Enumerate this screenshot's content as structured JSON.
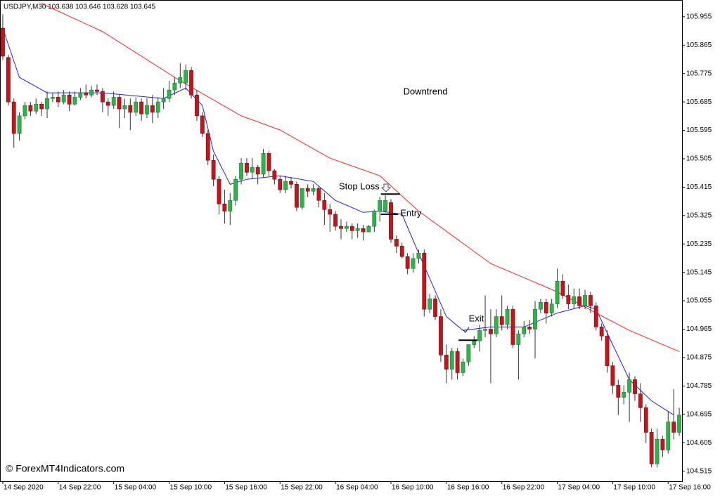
{
  "chart_data": {
    "type": "candlestick",
    "title": "USDJPY,M30  103.638 103.646 103.628 103.645",
    "watermark": "© ForexMT4Indicators.com",
    "up_color": "#2eb34a",
    "down_color": "#c0161c",
    "ylim": [
      104.483,
      105.997
    ],
    "yticks": [
      105.955,
      105.865,
      105.775,
      105.685,
      105.595,
      105.505,
      105.415,
      105.325,
      105.235,
      105.145,
      105.055,
      104.965,
      104.875,
      104.785,
      104.695,
      104.605,
      104.515
    ],
    "xlim": [
      -0.5,
      122.5
    ],
    "xticks": [
      {
        "value": 0,
        "label": "14 Sep 2020"
      },
      {
        "value": 10,
        "label": "14 Sep 22:00"
      },
      {
        "value": 20,
        "label": "15 Sep 04:00"
      },
      {
        "value": 30,
        "label": "15 Sep 10:00"
      },
      {
        "value": 40,
        "label": "15 Sep 16:00"
      },
      {
        "value": 50,
        "label": "15 Sep 22:00"
      },
      {
        "value": 60,
        "label": "16 Sep 04:00"
      },
      {
        "value": 70,
        "label": "16 Sep 10:00"
      },
      {
        "value": 80,
        "label": "16 Sep 16:00"
      },
      {
        "value": 90,
        "label": "16 Sep 22:00"
      },
      {
        "value": 100,
        "label": "17 Sep 04:00"
      },
      {
        "value": 110,
        "label": "17 Sep 10:00"
      },
      {
        "value": 120,
        "label": "17 Sep 16:00"
      }
    ],
    "candles": [
      [
        105.919,
        105.963,
        105.819,
        105.83
      ],
      [
        105.826,
        105.834,
        105.674,
        105.685
      ],
      [
        105.685,
        105.696,
        105.54,
        105.585
      ],
      [
        105.585,
        105.652,
        105.562,
        105.641
      ],
      [
        105.641,
        105.685,
        105.63,
        105.674
      ],
      [
        105.674,
        105.685,
        105.641,
        105.656
      ],
      [
        105.656,
        105.696,
        105.647,
        105.678
      ],
      [
        105.678,
        105.685,
        105.641,
        105.663
      ],
      [
        105.663,
        105.718,
        105.634,
        105.696
      ],
      [
        105.696,
        105.714,
        105.685,
        105.7
      ],
      [
        105.7,
        105.718,
        105.669,
        105.685
      ],
      [
        105.685,
        105.723,
        105.678,
        105.707
      ],
      [
        105.707,
        105.718,
        105.656,
        105.678
      ],
      [
        105.678,
        105.718,
        105.674,
        105.7
      ],
      [
        105.7,
        105.729,
        105.692,
        105.714
      ],
      [
        105.714,
        105.74,
        105.696,
        105.707
      ],
      [
        105.707,
        105.736,
        105.7,
        105.723
      ],
      [
        105.723,
        105.74,
        105.707,
        105.718
      ],
      [
        105.718,
        105.729,
        105.652,
        105.685
      ],
      [
        105.685,
        105.696,
        105.641,
        105.674
      ],
      [
        105.674,
        105.718,
        105.663,
        105.7
      ],
      [
        105.7,
        105.707,
        105.603,
        105.663
      ],
      [
        105.663,
        105.696,
        105.634,
        105.674
      ],
      [
        105.674,
        105.696,
        105.596,
        105.652
      ],
      [
        105.652,
        105.7,
        105.641,
        105.685
      ],
      [
        105.685,
        105.696,
        105.625,
        105.647
      ],
      [
        105.647,
        105.696,
        105.634,
        105.674
      ],
      [
        105.674,
        105.707,
        105.618,
        105.652
      ],
      [
        105.652,
        105.7,
        105.634,
        105.685
      ],
      [
        105.685,
        105.729,
        105.663,
        105.696
      ],
      [
        105.696,
        105.752,
        105.685,
        105.723
      ],
      [
        105.723,
        105.763,
        105.707,
        105.745
      ],
      [
        105.745,
        105.808,
        105.729,
        105.763
      ],
      [
        105.745,
        105.803,
        105.723,
        105.785
      ],
      [
        105.785,
        105.796,
        105.696,
        105.707
      ],
      [
        105.707,
        105.723,
        105.625,
        105.641
      ],
      [
        105.641,
        105.652,
        105.574,
        105.585
      ],
      [
        105.585,
        105.596,
        105.485,
        105.5
      ],
      [
        105.5,
        105.518,
        105.418,
        105.44
      ],
      [
        105.44,
        105.451,
        105.329,
        105.362
      ],
      [
        105.362,
        105.407,
        105.3,
        105.339
      ],
      [
        105.339,
        105.396,
        105.295,
        105.373
      ],
      [
        105.373,
        105.451,
        105.357,
        105.44
      ],
      [
        105.44,
        105.507,
        105.424,
        105.491
      ],
      [
        105.491,
        105.507,
        105.451,
        105.462
      ],
      [
        105.462,
        105.507,
        105.44,
        105.478
      ],
      [
        105.478,
        105.485,
        105.424,
        105.456
      ],
      [
        105.456,
        105.536,
        105.447,
        105.522
      ],
      [
        105.522,
        105.529,
        105.451,
        105.467
      ],
      [
        105.467,
        105.473,
        105.424,
        105.44
      ],
      [
        105.44,
        105.451,
        105.396,
        105.407
      ],
      [
        105.407,
        105.451,
        105.396,
        105.433
      ],
      [
        105.433,
        105.447,
        105.411,
        105.424
      ],
      [
        105.424,
        105.433,
        105.339,
        105.351
      ],
      [
        105.351,
        105.411,
        105.344,
        105.411
      ],
      [
        105.411,
        105.424,
        105.384,
        105.402
      ],
      [
        105.402,
        105.424,
        105.389,
        105.411
      ],
      [
        105.411,
        105.418,
        105.351,
        105.373
      ],
      [
        105.373,
        105.396,
        105.295,
        105.344
      ],
      [
        105.344,
        105.362,
        105.273,
        105.329
      ],
      [
        105.329,
        105.339,
        105.277,
        105.291
      ],
      [
        105.291,
        105.313,
        105.25,
        105.284
      ],
      [
        105.284,
        105.306,
        105.273,
        105.291
      ],
      [
        105.291,
        105.3,
        105.25,
        105.277
      ],
      [
        105.277,
        105.3,
        105.255,
        105.284
      ],
      [
        105.284,
        105.295,
        105.246,
        105.273
      ],
      [
        105.273,
        105.295,
        105.273,
        105.291
      ],
      [
        105.291,
        105.344,
        105.273,
        105.339
      ],
      [
        105.339,
        105.384,
        105.306,
        105.373
      ],
      [
        105.339,
        105.389,
        105.335,
        105.373
      ],
      [
        105.366,
        105.377,
        105.239,
        105.25
      ],
      [
        105.25,
        105.262,
        105.206,
        105.228
      ],
      [
        105.228,
        105.239,
        105.189,
        105.195
      ],
      [
        105.195,
        105.206,
        105.139,
        105.157
      ],
      [
        105.157,
        105.206,
        105.144,
        105.189
      ],
      [
        105.189,
        105.217,
        105.173,
        105.206
      ],
      [
        105.206,
        105.217,
        105.005,
        105.028
      ],
      [
        105.028,
        105.077,
        105.016,
        105.061
      ],
      [
        105.061,
        105.072,
        104.994,
        105.005
      ],
      [
        105.005,
        105.028,
        104.861,
        104.883
      ],
      [
        104.883,
        104.916,
        104.794,
        104.838
      ],
      [
        104.838,
        104.905,
        104.805,
        104.894
      ],
      [
        104.894,
        104.905,
        104.805,
        104.827
      ],
      [
        104.827,
        104.872,
        104.816,
        104.861
      ],
      [
        104.861,
        104.916,
        104.849,
        104.916
      ],
      [
        104.916,
        104.943,
        104.905,
        104.928
      ],
      [
        104.928,
        104.979,
        104.894,
        104.961
      ],
      [
        104.961,
        105.072,
        104.939,
        104.965
      ],
      [
        104.965,
        105.028,
        104.794,
        104.95
      ],
      [
        104.95,
        105.028,
        104.939,
        105.005
      ],
      [
        105.005,
        105.072,
        104.961,
        104.979
      ],
      [
        104.979,
        105.039,
        104.965,
        105.028
      ],
      [
        105.028,
        105.039,
        104.905,
        104.916
      ],
      [
        104.916,
        104.961,
        104.805,
        104.95
      ],
      [
        104.95,
        104.99,
        104.939,
        104.972
      ],
      [
        104.972,
        104.994,
        104.95,
        104.965
      ],
      [
        104.965,
        105.054,
        104.872,
        105.028
      ],
      [
        105.028,
        105.061,
        105.016,
        105.05
      ],
      [
        105.05,
        105.061,
        104.983,
        105.016
      ],
      [
        105.016,
        105.061,
        105.005,
        105.045
      ],
      [
        105.045,
        105.157,
        105.032,
        105.117
      ],
      [
        105.117,
        105.139,
        105.061,
        105.072
      ],
      [
        105.072,
        105.106,
        105.028,
        105.045
      ],
      [
        105.045,
        105.094,
        105.028,
        105.068
      ],
      [
        105.068,
        105.094,
        105.028,
        105.039
      ],
      [
        105.039,
        105.09,
        105.028,
        105.072
      ],
      [
        105.072,
        105.083,
        105.016,
        105.039
      ],
      [
        105.039,
        105.05,
        104.961,
        104.972
      ],
      [
        104.972,
        104.983,
        104.928,
        104.943
      ],
      [
        104.943,
        104.961,
        104.827,
        104.849
      ],
      [
        104.849,
        104.861,
        104.76,
        104.787
      ],
      [
        104.787,
        104.805,
        104.693,
        104.749
      ],
      [
        104.749,
        104.787,
        104.727,
        104.765
      ],
      [
        104.765,
        104.827,
        104.671,
        104.805
      ],
      [
        104.805,
        104.816,
        104.738,
        104.76
      ],
      [
        104.76,
        104.794,
        104.671,
        104.716
      ],
      [
        104.716,
        104.727,
        104.604,
        104.638
      ],
      [
        104.638,
        104.649,
        104.527,
        104.538
      ],
      [
        104.538,
        104.649,
        104.527,
        104.616
      ],
      [
        104.616,
        104.627,
        104.56,
        104.582
      ],
      [
        104.582,
        104.704,
        104.571,
        104.671
      ],
      [
        104.671,
        104.775,
        104.616,
        104.638
      ],
      [
        104.638,
        104.716,
        104.627,
        104.693
      ]
    ],
    "lines": [
      {
        "color": "#1f1fff",
        "x": [
          0,
          3,
          8,
          18,
          29,
          33,
          36,
          38,
          41,
          44,
          50,
          56,
          60,
          65,
          68,
          72,
          75,
          80,
          83,
          88,
          94,
          100,
          105,
          107,
          110,
          113,
          117,
          121
        ],
        "values": [
          105.919,
          105.763,
          105.714,
          105.714,
          105.696,
          105.729,
          105.674,
          105.529,
          105.424,
          105.44,
          105.451,
          105.433,
          105.373,
          105.335,
          105.339,
          105.329,
          105.206,
          105.005,
          104.961,
          104.972,
          104.972,
          105.016,
          105.039,
          105.028,
          104.916,
          104.805,
          104.738,
          104.693
        ]
      },
      {
        "color": "#ff2020",
        "x": [
          7,
          18,
          32,
          43,
          50,
          59,
          68,
          75,
          88,
          100,
          107,
          113,
          122
        ],
        "values": [
          105.997,
          105.908,
          105.752,
          105.641,
          105.596,
          105.507,
          105.451,
          105.339,
          105.173,
          105.083,
          105.016,
          104.961,
          104.894
        ]
      }
    ],
    "annotations": [
      {
        "text": "Downtrend"
      }
    ],
    "levels": [
      {
        "label": "Stop Loss",
        "value": 105.393
      },
      {
        "label": "Entry",
        "value": 105.329
      },
      {
        "label": "Exit",
        "value": 104.93
      }
    ]
  }
}
